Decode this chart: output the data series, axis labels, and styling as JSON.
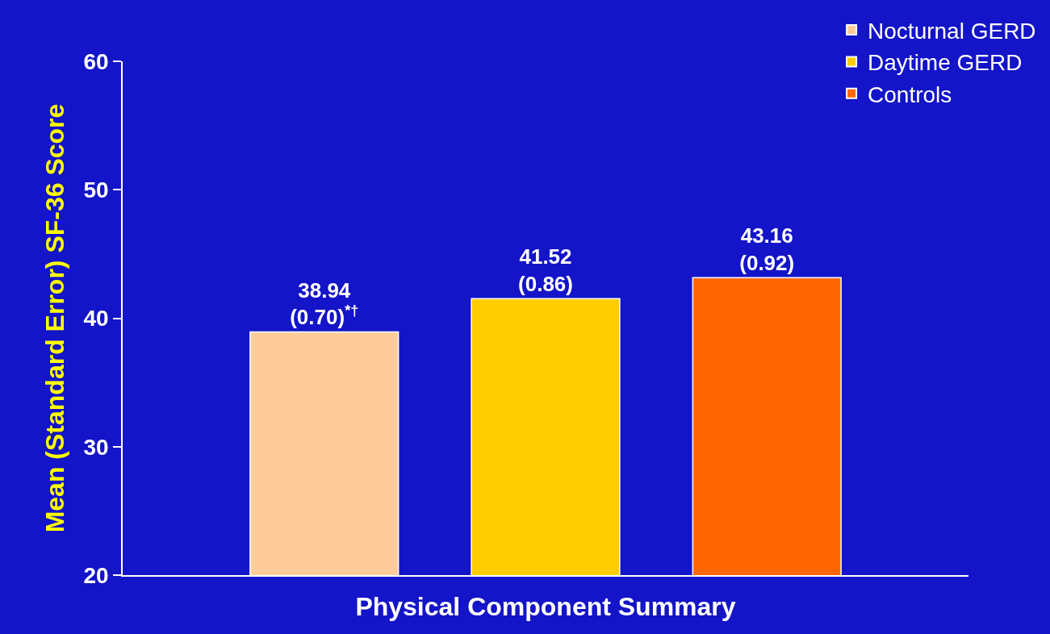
{
  "chart_data": {
    "type": "bar",
    "xlabel": "Physical Component Summary",
    "ylabel": "Mean (Standard Error) SF-36 Score",
    "categories": [
      null
    ],
    "series": [
      {
        "name": "Nocturnal GERD",
        "color": "#ffcc99",
        "values": [
          38.94
        ],
        "value_labels": [
          "38.94\n(0.70)$^{*†}$"
        ]
      },
      {
        "name": "Daytime GERD",
        "color": "#ffcc00",
        "values": [
          41.52
        ],
        "value_labels": [
          "41.52\n(0.86)"
        ]
      },
      {
        "name": "Controls",
        "color": "#ff6600",
        "values": [
          43.16
        ],
        "value_labels": [
          "43.16\n(0.92)"
        ]
      }
    ],
    "ylim": [
      20,
      60
    ],
    "yticks": [
      20,
      30,
      40,
      50,
      60
    ],
    "grid": false,
    "legend": "top right"
  }
}
